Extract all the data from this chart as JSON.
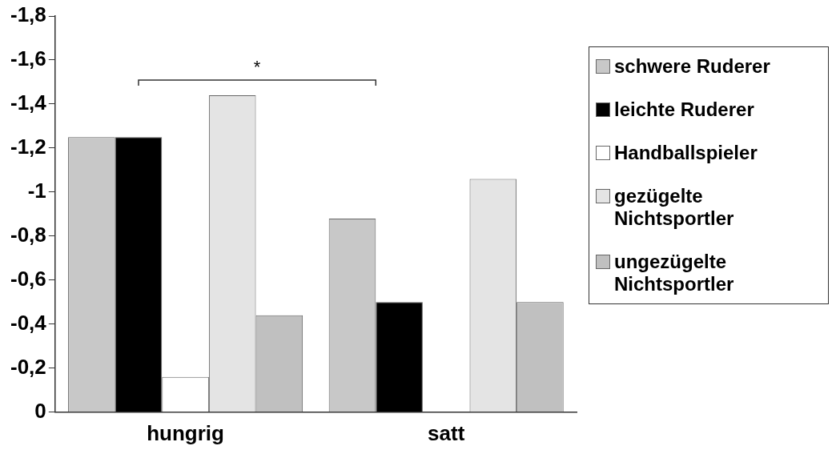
{
  "chart_data": {
    "type": "bar",
    "categories": [
      "hungrig",
      "satt"
    ],
    "series": [
      {
        "name": "schwere Ruderer",
        "color": "#c8c8c8",
        "values": [
          -1.25,
          -0.88
        ]
      },
      {
        "name": "leichte Ruderer",
        "color": "#000000",
        "values": [
          -1.25,
          -0.5
        ]
      },
      {
        "name": "Handballspieler",
        "color": "#ffffff",
        "values": [
          -0.16,
          0
        ]
      },
      {
        "name": "gezügelte Nichtsportler",
        "color": "#e4e4e4",
        "values": [
          -1.44,
          -1.06
        ]
      },
      {
        "name": "ungezügelte Nichtsportler",
        "color": "#c0c0c0",
        "values": [
          -0.44,
          -0.5
        ]
      }
    ],
    "ylim": [
      0,
      -1.8
    ],
    "yticks": [
      0,
      {
        "value": -0.2,
        "label": "-0,2"
      },
      {
        "value": -0.4,
        "label": "-0,4"
      },
      {
        "value": -0.6,
        "label": "-0,6"
      },
      {
        "value": -0.8,
        "label": "-0,8"
      },
      -1,
      {
        "value": -1.2,
        "label": "-1,2"
      },
      {
        "value": -1.4,
        "label": "-1,4"
      },
      {
        "value": -1.6,
        "label": "-1,6"
      },
      {
        "value": -1.8,
        "label": "-1,8"
      }
    ],
    "annotations": [
      "*"
    ],
    "grid": false,
    "legend": "right"
  }
}
